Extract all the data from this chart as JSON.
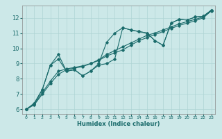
{
  "title": "",
  "xlabel": "Humidex (Indice chaleur)",
  "ylabel": "",
  "bg_color": "#cce8e8",
  "line_color": "#1a6b6b",
  "grid_color": "#afd4d4",
  "xlim": [
    -0.5,
    23.5
  ],
  "ylim": [
    5.7,
    12.8
  ],
  "yticks": [
    6,
    7,
    8,
    9,
    10,
    11,
    12
  ],
  "xticks": [
    0,
    1,
    2,
    3,
    4,
    5,
    6,
    7,
    8,
    9,
    10,
    11,
    12,
    13,
    14,
    15,
    16,
    17,
    18,
    19,
    20,
    21,
    22,
    23
  ],
  "series": [
    {
      "x": [
        0,
        1,
        2,
        3,
        4,
        5,
        6,
        7,
        8,
        9,
        10,
        11,
        12,
        13,
        14,
        15,
        16,
        17,
        18,
        19,
        20,
        21,
        22,
        23
      ],
      "y": [
        6.0,
        6.4,
        7.3,
        8.9,
        9.6,
        8.5,
        8.6,
        8.2,
        8.5,
        9.0,
        10.4,
        11.0,
        11.35,
        11.2,
        11.1,
        11.0,
        10.5,
        10.2,
        11.65,
        11.9,
        11.85,
        12.05,
        12.1,
        12.5
      ]
    },
    {
      "x": [
        0,
        1,
        2,
        3,
        4,
        5,
        6,
        7,
        8,
        9,
        10,
        11,
        12,
        13,
        14,
        15,
        16,
        17,
        18,
        19,
        20,
        21,
        22,
        23
      ],
      "y": [
        6.0,
        6.3,
        7.0,
        7.7,
        8.3,
        8.6,
        8.7,
        8.8,
        9.0,
        9.2,
        9.5,
        9.7,
        9.9,
        10.2,
        10.5,
        10.7,
        10.9,
        11.1,
        11.3,
        11.5,
        11.65,
        11.8,
        12.0,
        12.45
      ]
    },
    {
      "x": [
        0,
        1,
        2,
        3,
        4,
        5,
        6,
        7,
        8,
        9,
        10,
        11,
        12,
        13,
        14,
        15,
        16,
        17,
        18,
        19,
        20,
        21,
        22,
        23
      ],
      "y": [
        6.0,
        6.35,
        7.1,
        7.85,
        8.5,
        8.65,
        8.75,
        8.85,
        9.0,
        9.25,
        9.6,
        9.85,
        10.1,
        10.35,
        10.6,
        10.85,
        11.0,
        11.2,
        11.4,
        11.6,
        11.75,
        11.9,
        12.05,
        12.47
      ]
    },
    {
      "x": [
        0,
        1,
        2,
        3,
        4,
        5,
        6,
        7,
        8,
        9,
        10,
        11,
        12,
        13,
        14,
        15,
        16,
        17,
        18,
        19,
        20,
        21,
        22,
        23
      ],
      "y": [
        6.0,
        6.4,
        7.3,
        8.9,
        9.3,
        8.5,
        8.6,
        8.2,
        8.5,
        8.9,
        9.0,
        9.3,
        11.35,
        11.2,
        11.1,
        11.0,
        10.5,
        10.2,
        11.65,
        11.9,
        11.85,
        12.05,
        12.1,
        12.5
      ]
    }
  ]
}
